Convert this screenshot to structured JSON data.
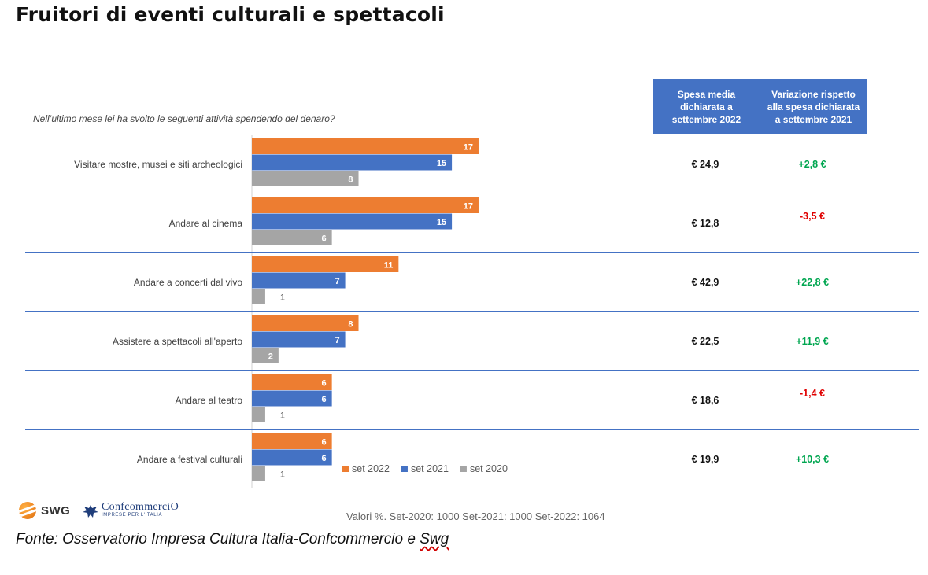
{
  "title": "Fruitori di eventi culturali e spettacoli",
  "question": "Nell’ultimo mese lei ha svolto le seguenti attività spendendo del denaro?",
  "header_spesa": "Spesa media\ndichiarata a\nsettembre 2022",
  "header_variazione": "Variazione rispetto\nalla spesa dichiarata\na settembre 2021",
  "footnote": "Valori %. Set-2020: 1000 Set-2021: 1000 Set-2022: 1064",
  "source_prefix": "Fonte: Osservatorio Impresa Cultura Italia-Confcommercio e ",
  "source_suffix": "Swg",
  "logos": {
    "swg": "SWG",
    "confcommercio": "ConfcommerciO",
    "confcommercio_sub": "IMPRESE PER L'ITALIA"
  },
  "colors": {
    "set2022": "#ed7d31",
    "set2021": "#4472c4",
    "set2020": "#a5a5a5",
    "positive": "#00a650",
    "negative": "#e00000",
    "divider": "#4472c4"
  },
  "chart_data": {
    "type": "bar",
    "orientation": "horizontal",
    "categories": [
      "Visitare mostre, musei e siti archeologici",
      "Andare al cinema",
      "Andare a concerti dal vivo",
      "Assistere a spettacoli all'aperto",
      "Andare al teatro",
      "Andare a festival culturali"
    ],
    "series": [
      {
        "name": "set 2022",
        "color": "#ed7d31",
        "values": [
          17,
          17,
          11,
          8,
          6,
          6
        ]
      },
      {
        "name": "set 2021",
        "color": "#4472c4",
        "values": [
          15,
          15,
          7,
          7,
          6,
          6
        ]
      },
      {
        "name": "set 2020",
        "color": "#a5a5a5",
        "values": [
          8,
          6,
          1,
          2,
          1,
          1
        ]
      }
    ],
    "spesa_media": [
      "€ 24,9",
      "€ 12,8",
      "€ 42,9",
      "€ 22,5",
      "€ 18,6",
      "€ 19,9"
    ],
    "variazione": [
      "+2,8 €",
      "-3,5 €",
      "+22,8 €",
      "+11,9 €",
      "-1,4 €",
      "+10,3 €"
    ],
    "legend_position": "bottom-right",
    "xlim": [
      0,
      17
    ]
  }
}
